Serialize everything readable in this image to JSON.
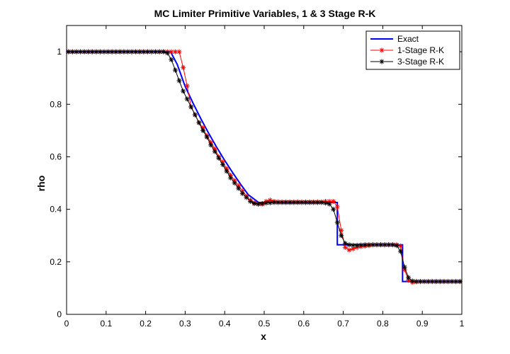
{
  "chart_data": {
    "type": "line",
    "title": "MC Limiter Primitive Variables, 1 & 3 Stage R-K",
    "xlabel": "x",
    "ylabel": "rho",
    "xlim": [
      0,
      1
    ],
    "ylim": [
      0,
      1.1
    ],
    "xticks": [
      0,
      0.1,
      0.2,
      0.3,
      0.4,
      0.5,
      0.6,
      0.7,
      0.8,
      0.9,
      1
    ],
    "xtick_labels": [
      "0",
      "0.1",
      "0.2",
      "0.3",
      "0.4",
      "0.5",
      "0.6",
      "0.7",
      "0.8",
      "0.9",
      "1"
    ],
    "yticks": [
      0,
      0.2,
      0.4,
      0.6,
      0.8,
      1
    ],
    "ytick_labels": [
      "0",
      "0.2",
      "0.4",
      "0.6",
      "0.8",
      "1"
    ],
    "grid": false,
    "legend_position": "top-right",
    "series": [
      {
        "name": "Exact",
        "color": "#0000ff",
        "marker": "none",
        "x": [
          0,
          0.263,
          0.28,
          0.3,
          0.32,
          0.34,
          0.36,
          0.38,
          0.4,
          0.42,
          0.44,
          0.46,
          0.486,
          0.5,
          0.55,
          0.6,
          0.65,
          0.685,
          0.685,
          0.7,
          0.75,
          0.8,
          0.85,
          0.85,
          0.9,
          0.95,
          1.0
        ],
        "y": [
          1.0,
          1.0,
          0.952,
          0.868,
          0.804,
          0.744,
          0.688,
          0.636,
          0.586,
          0.54,
          0.496,
          0.455,
          0.426,
          0.426,
          0.426,
          0.426,
          0.426,
          0.426,
          0.265,
          0.265,
          0.265,
          0.265,
          0.265,
          0.125,
          0.125,
          0.125,
          0.125
        ]
      },
      {
        "name": "1-Stage R-K",
        "color": "#ff0000",
        "marker": "star",
        "x": [
          0.005,
          0.015,
          0.025,
          0.035,
          0.045,
          0.055,
          0.065,
          0.075,
          0.085,
          0.095,
          0.105,
          0.115,
          0.125,
          0.135,
          0.145,
          0.155,
          0.165,
          0.175,
          0.185,
          0.195,
          0.205,
          0.215,
          0.225,
          0.235,
          0.245,
          0.255,
          0.265,
          0.275,
          0.285,
          0.295,
          0.305,
          0.315,
          0.325,
          0.335,
          0.345,
          0.355,
          0.365,
          0.375,
          0.385,
          0.395,
          0.405,
          0.415,
          0.425,
          0.435,
          0.445,
          0.455,
          0.465,
          0.475,
          0.485,
          0.495,
          0.505,
          0.515,
          0.525,
          0.535,
          0.545,
          0.555,
          0.565,
          0.575,
          0.585,
          0.595,
          0.605,
          0.615,
          0.625,
          0.635,
          0.645,
          0.655,
          0.665,
          0.675,
          0.685,
          0.695,
          0.705,
          0.715,
          0.725,
          0.735,
          0.745,
          0.755,
          0.765,
          0.775,
          0.785,
          0.795,
          0.805,
          0.815,
          0.825,
          0.835,
          0.845,
          0.855,
          0.865,
          0.875,
          0.885,
          0.895,
          0.905,
          0.915,
          0.925,
          0.935,
          0.945,
          0.955,
          0.965,
          0.975,
          0.985,
          0.995
        ],
        "y": [
          1.0,
          1.0,
          1.0,
          1.0,
          1.0,
          1.0,
          1.0,
          1.0,
          1.0,
          1.0,
          1.0,
          1.0,
          1.0,
          1.0,
          1.0,
          1.0,
          1.0,
          1.0,
          1.0,
          1.0,
          1.0,
          1.0,
          1.0,
          1.0,
          1.0,
          1.0,
          1.0,
          1.0,
          1.0,
          0.94,
          0.87,
          0.79,
          0.76,
          0.73,
          0.71,
          0.68,
          0.655,
          0.63,
          0.6,
          0.58,
          0.555,
          0.53,
          0.51,
          0.49,
          0.47,
          0.45,
          0.435,
          0.425,
          0.42,
          0.42,
          0.43,
          0.435,
          0.43,
          0.428,
          0.428,
          0.428,
          0.428,
          0.428,
          0.428,
          0.428,
          0.428,
          0.428,
          0.428,
          0.428,
          0.428,
          0.43,
          0.43,
          0.43,
          0.41,
          0.32,
          0.255,
          0.245,
          0.25,
          0.255,
          0.258,
          0.26,
          0.262,
          0.265,
          0.265,
          0.265,
          0.265,
          0.265,
          0.265,
          0.265,
          0.26,
          0.17,
          0.13,
          0.122,
          0.124,
          0.125,
          0.125,
          0.125,
          0.125,
          0.125,
          0.125,
          0.125,
          0.125,
          0.125,
          0.125,
          0.125
        ]
      },
      {
        "name": "3-Stage R-K",
        "color": "#000000",
        "marker": "star",
        "x": [
          0.005,
          0.015,
          0.025,
          0.035,
          0.045,
          0.055,
          0.065,
          0.075,
          0.085,
          0.095,
          0.105,
          0.115,
          0.125,
          0.135,
          0.145,
          0.155,
          0.165,
          0.175,
          0.185,
          0.195,
          0.205,
          0.215,
          0.225,
          0.235,
          0.245,
          0.255,
          0.265,
          0.275,
          0.285,
          0.295,
          0.305,
          0.315,
          0.325,
          0.335,
          0.345,
          0.355,
          0.365,
          0.375,
          0.385,
          0.395,
          0.405,
          0.415,
          0.425,
          0.435,
          0.445,
          0.455,
          0.465,
          0.475,
          0.485,
          0.495,
          0.505,
          0.515,
          0.525,
          0.535,
          0.545,
          0.555,
          0.565,
          0.575,
          0.585,
          0.595,
          0.605,
          0.615,
          0.625,
          0.635,
          0.645,
          0.655,
          0.665,
          0.675,
          0.685,
          0.695,
          0.705,
          0.715,
          0.725,
          0.735,
          0.745,
          0.755,
          0.765,
          0.775,
          0.785,
          0.795,
          0.805,
          0.815,
          0.825,
          0.835,
          0.845,
          0.855,
          0.865,
          0.875,
          0.885,
          0.895,
          0.905,
          0.915,
          0.925,
          0.935,
          0.945,
          0.955,
          0.965,
          0.975,
          0.985,
          0.995
        ],
        "y": [
          1.0,
          1.0,
          1.0,
          1.0,
          1.0,
          1.0,
          1.0,
          1.0,
          1.0,
          1.0,
          1.0,
          1.0,
          1.0,
          1.0,
          1.0,
          1.0,
          1.0,
          1.0,
          1.0,
          1.0,
          1.0,
          1.0,
          1.0,
          1.0,
          1.0,
          0.995,
          0.97,
          0.93,
          0.89,
          0.85,
          0.82,
          0.79,
          0.76,
          0.73,
          0.7,
          0.675,
          0.645,
          0.62,
          0.595,
          0.57,
          0.545,
          0.52,
          0.5,
          0.48,
          0.46,
          0.445,
          0.43,
          0.422,
          0.42,
          0.422,
          0.424,
          0.425,
          0.426,
          0.426,
          0.426,
          0.426,
          0.426,
          0.426,
          0.426,
          0.426,
          0.426,
          0.426,
          0.426,
          0.426,
          0.426,
          0.424,
          0.42,
          0.4,
          0.35,
          0.3,
          0.27,
          0.265,
          0.263,
          0.263,
          0.264,
          0.265,
          0.265,
          0.265,
          0.265,
          0.265,
          0.265,
          0.265,
          0.265,
          0.262,
          0.24,
          0.18,
          0.14,
          0.127,
          0.125,
          0.125,
          0.125,
          0.125,
          0.125,
          0.125,
          0.125,
          0.125,
          0.125,
          0.125,
          0.125,
          0.125
        ]
      }
    ]
  }
}
